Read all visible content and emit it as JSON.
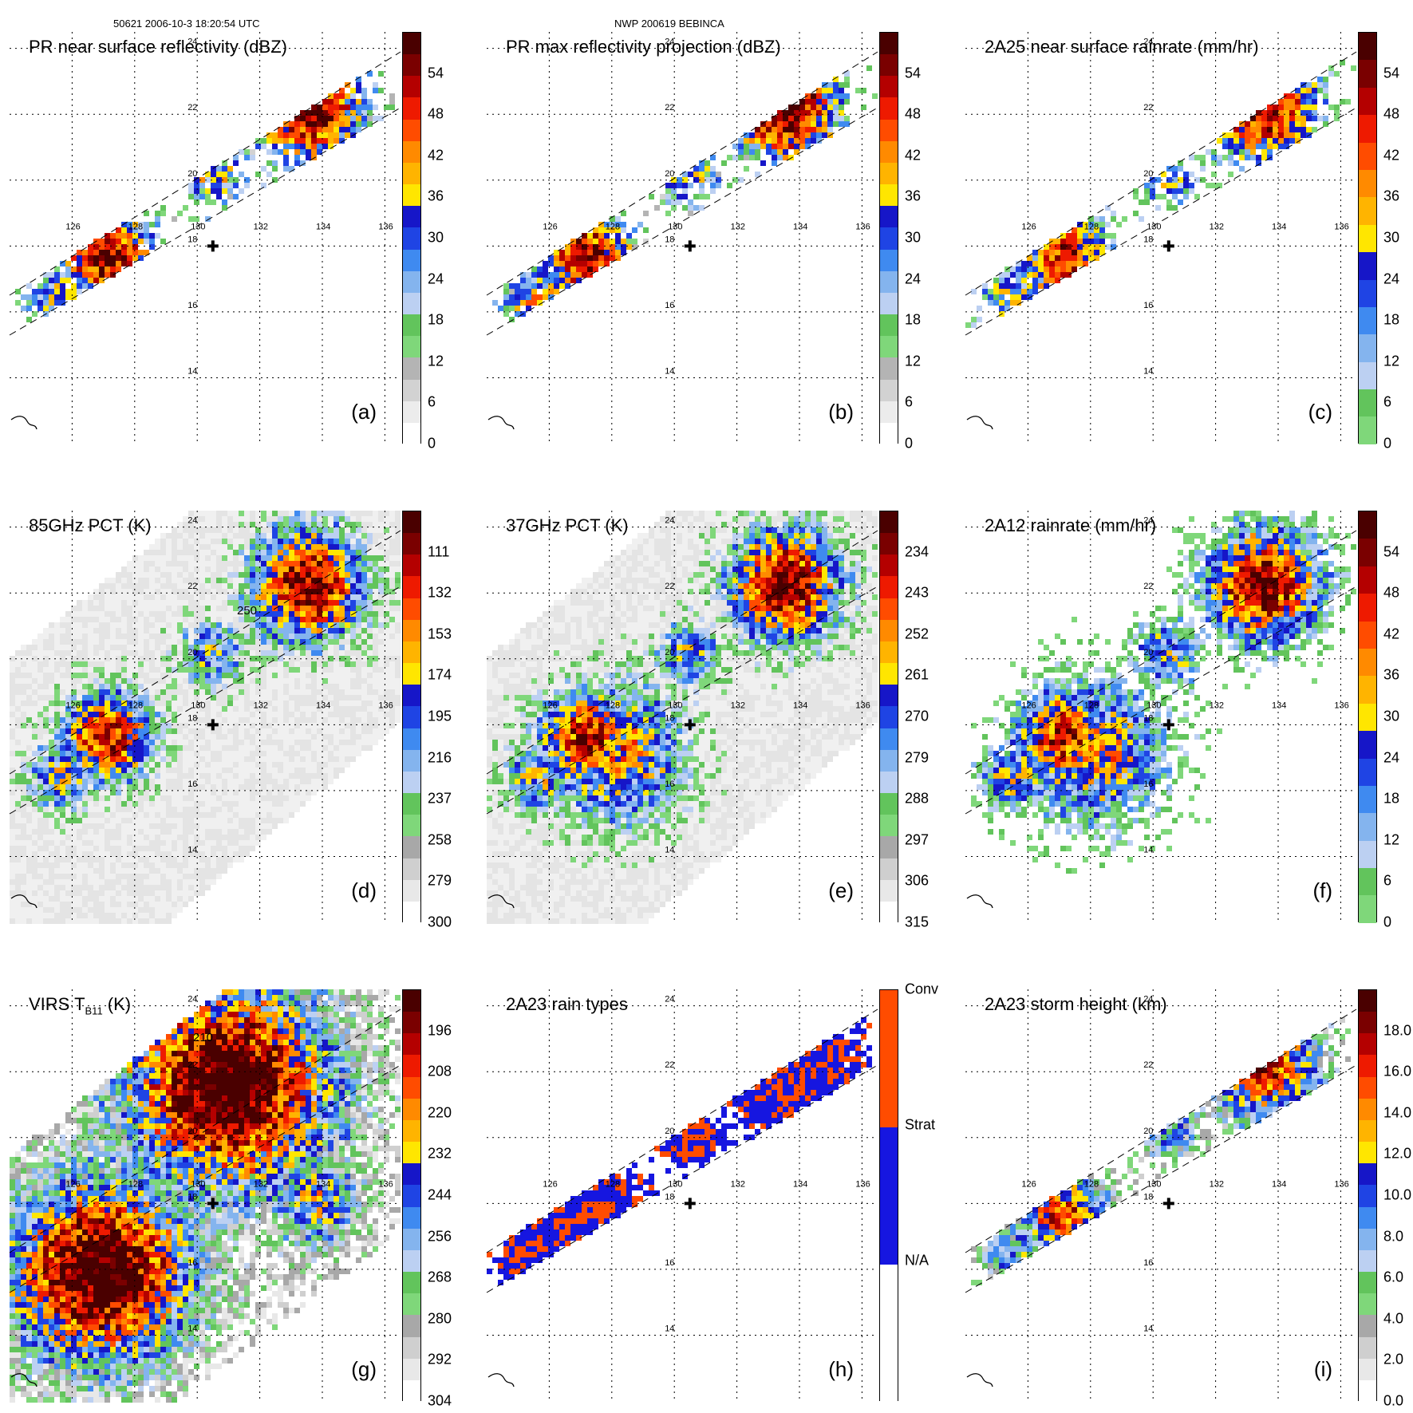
{
  "header": {
    "left": "50621 2006-10-3 18:20:54 UTC",
    "center": "NWP 200619 BEBINCA"
  },
  "map": {
    "lon_labels": [
      "126",
      "128",
      "130",
      "132",
      "134",
      "136"
    ],
    "lat_labels": [
      "24",
      "22",
      "20",
      "18",
      "16",
      "14"
    ],
    "lon_range": [
      124,
      136.5
    ],
    "lat_range": [
      12,
      24.5
    ],
    "storm_center": {
      "lon": 130.5,
      "lat": 18.0
    }
  },
  "panels": [
    {
      "id": "a",
      "title": "PR near surface reflectivity (dBZ)",
      "letter": "(a)",
      "scheme": "dbz",
      "swath": "pr",
      "ticks": [
        "54",
        "48",
        "42",
        "36",
        "30",
        "24",
        "18",
        "12",
        "6",
        "0"
      ]
    },
    {
      "id": "b",
      "title": "PR max reflectivity projection (dBZ)",
      "letter": "(b)",
      "scheme": "dbz",
      "swath": "pr",
      "ticks": [
        "54",
        "48",
        "42",
        "36",
        "30",
        "24",
        "18",
        "12",
        "6",
        "0"
      ]
    },
    {
      "id": "c",
      "title": "2A25 near surface rainrate (mm/hr)",
      "letter": "(c)",
      "scheme": "rain",
      "swath": "pr",
      "ticks": [
        "54",
        "48",
        "42",
        "36",
        "30",
        "24",
        "18",
        "12",
        "6",
        "0"
      ]
    },
    {
      "id": "d",
      "title": "85GHz PCT (K)",
      "letter": "(d)",
      "scheme": "pct",
      "swath": "tmi",
      "contour": "250",
      "ticks": [
        "111",
        "132",
        "153",
        "174",
        "195",
        "216",
        "237",
        "258",
        "279",
        "300"
      ]
    },
    {
      "id": "e",
      "title": "37GHz PCT (K)",
      "letter": "(e)",
      "scheme": "pct37",
      "swath": "tmi",
      "ticks": [
        "234",
        "243",
        "252",
        "261",
        "270",
        "279",
        "288",
        "297",
        "306",
        "315"
      ]
    },
    {
      "id": "f",
      "title": "2A12 rainrate (mm/hr)",
      "letter": "(f)",
      "scheme": "rain",
      "swath": "tmi",
      "ticks": [
        "54",
        "48",
        "42",
        "36",
        "30",
        "24",
        "18",
        "12",
        "6",
        "0"
      ]
    },
    {
      "id": "g",
      "title": "VIRS T",
      "title_sub": "B11",
      "title_tail": " (K)",
      "letter": "(g)",
      "scheme": "virs",
      "swath": "virs",
      "contour": "210",
      "ticks": [
        "196",
        "208",
        "220",
        "232",
        "244",
        "256",
        "268",
        "280",
        "292",
        "304"
      ]
    },
    {
      "id": "h",
      "title": "2A23 rain types",
      "letter": "(h)",
      "scheme": "types",
      "swath": "pr",
      "ticks": [
        "Conv",
        "Strat",
        "N/A"
      ]
    },
    {
      "id": "i",
      "title": "2A23 storm height (km)",
      "letter": "(i)",
      "scheme": "height",
      "swath": "pr",
      "ticks": [
        "18.0",
        "16.0",
        "14.0",
        "12.0",
        "10.0",
        "8.0",
        "6.0",
        "4.0",
        "2.0",
        "0.0"
      ]
    }
  ],
  "colors": {
    "dbz": [
      "#ffffff",
      "#ececec",
      "#d2d2d2",
      "#b4b4b4",
      "#7fd77a",
      "#62c45c",
      "#bcd0f2",
      "#84b4ee",
      "#3f8af0",
      "#1f44e4",
      "#1616c8",
      "#ffe600",
      "#ffb400",
      "#ff8a00",
      "#ff4c00",
      "#ee1a00",
      "#b40000",
      "#7a0000",
      "#4a0000"
    ],
    "rain": [
      "#7fd77a",
      "#62c45c",
      "#bcd0f2",
      "#84b4ee",
      "#3f8af0",
      "#1f44e4",
      "#1616c8",
      "#ffe600",
      "#ffb400",
      "#ff8a00",
      "#ff4c00",
      "#ee1a00",
      "#b40000",
      "#7a0000",
      "#4a0000"
    ],
    "pct": [
      "#ffffff",
      "#e8e8e8",
      "#cfcfcf",
      "#a8a8a8",
      "#7fd77a",
      "#62c45c",
      "#bcd0f2",
      "#84b4ee",
      "#3f8af0",
      "#1f44e4",
      "#1616c8",
      "#ffe600",
      "#ffb400",
      "#ff8a00",
      "#ff4c00",
      "#ee1a00",
      "#b40000",
      "#7a0000",
      "#4a0000"
    ],
    "pct37": [
      "#ffffff",
      "#e8e8e8",
      "#cfcfcf",
      "#a8a8a8",
      "#7fd77a",
      "#62c45c",
      "#bcd0f2",
      "#84b4ee",
      "#3f8af0",
      "#1f44e4",
      "#1616c8",
      "#ffe600",
      "#ffb400",
      "#ff8a00",
      "#ff4c00",
      "#ee1a00",
      "#b40000",
      "#7a0000",
      "#4a0000"
    ],
    "virs": [
      "#ffffff",
      "#e8e8e8",
      "#cfcfcf",
      "#a8a8a8",
      "#7fd77a",
      "#62c45c",
      "#bcd0f2",
      "#84b4ee",
      "#3f8af0",
      "#1f44e4",
      "#1616c8",
      "#ffe600",
      "#ffb400",
      "#ff8a00",
      "#ff4c00",
      "#ee1a00",
      "#b40000",
      "#7a0000",
      "#4a0000"
    ],
    "height": [
      "#ffffff",
      "#e8e8e8",
      "#cfcfcf",
      "#a8a8a8",
      "#7fd77a",
      "#62c45c",
      "#bcd0f2",
      "#84b4ee",
      "#3f8af0",
      "#1f44e4",
      "#1616c8",
      "#ffe600",
      "#ffb400",
      "#ff8a00",
      "#ff4c00",
      "#ee1a00",
      "#b40000",
      "#7a0000",
      "#4a0000"
    ],
    "types": [
      "#ffffff",
      "#1616e0",
      "#ff4c00"
    ]
  }
}
